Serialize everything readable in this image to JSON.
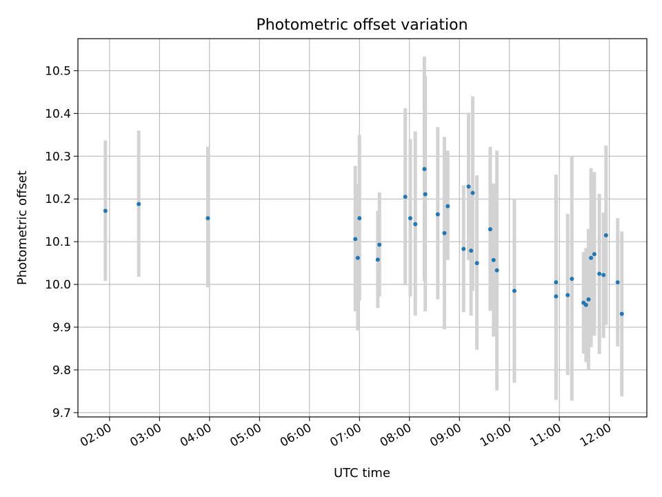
{
  "chart_data": {
    "type": "scatter",
    "title": "Photometric offset variation",
    "xlabel": "UTC time",
    "ylabel": "Photometric offset",
    "grid": true,
    "legend": "none",
    "x_tick_labels": [
      "02:00",
      "03:00",
      "04:00",
      "05:00",
      "06:00",
      "07:00",
      "08:00",
      "09:00",
      "10:00",
      "11:00",
      "12:00"
    ],
    "y_tick_labels": [
      "9.7",
      "9.8",
      "9.9",
      "10.0",
      "10.1",
      "10.2",
      "10.3",
      "10.4",
      "10.5"
    ],
    "xlim": [
      "01:22",
      "12:45"
    ],
    "ylim": [
      9.69,
      10.575
    ],
    "point_color": "#1f77b4",
    "errorbar_color": "#d3d3d3",
    "points": [
      {
        "t": "01:55",
        "y": 10.172,
        "lo": 10.008,
        "hi": 10.337
      },
      {
        "t": "02:35",
        "y": 10.188,
        "lo": 10.018,
        "hi": 10.36
      },
      {
        "t": "03:58",
        "y": 10.155,
        "lo": 9.993,
        "hi": 10.322
      },
      {
        "t": "06:55",
        "y": 10.106,
        "lo": 9.937,
        "hi": 10.277
      },
      {
        "t": "06:58",
        "y": 10.062,
        "lo": 9.892,
        "hi": 10.235
      },
      {
        "t": "07:00",
        "y": 10.155,
        "lo": 9.962,
        "hi": 10.35
      },
      {
        "t": "07:22",
        "y": 10.058,
        "lo": 9.945,
        "hi": 10.172
      },
      {
        "t": "07:24",
        "y": 10.093,
        "lo": 9.972,
        "hi": 10.215
      },
      {
        "t": "07:55",
        "y": 10.205,
        "lo": 9.998,
        "hi": 10.412
      },
      {
        "t": "08:01",
        "y": 10.155,
        "lo": 9.972,
        "hi": 10.34
      },
      {
        "t": "08:07",
        "y": 10.141,
        "lo": 9.927,
        "hi": 10.358
      },
      {
        "t": "08:18",
        "y": 10.27,
        "lo": 10.008,
        "hi": 10.533
      },
      {
        "t": "08:19",
        "y": 10.211,
        "lo": 9.937,
        "hi": 10.487
      },
      {
        "t": "08:34",
        "y": 10.164,
        "lo": 9.965,
        "hi": 10.368
      },
      {
        "t": "08:42",
        "y": 10.12,
        "lo": 9.895,
        "hi": 10.345
      },
      {
        "t": "08:46",
        "y": 10.183,
        "lo": 10.057,
        "hi": 10.313
      },
      {
        "t": "09:05",
        "y": 10.083,
        "lo": 9.935,
        "hi": 10.232
      },
      {
        "t": "09:11",
        "y": 10.229,
        "lo": 10.057,
        "hi": 10.402
      },
      {
        "t": "09:14",
        "y": 10.079,
        "lo": 9.927,
        "hi": 10.232
      },
      {
        "t": "09:16",
        "y": 10.214,
        "lo": 9.985,
        "hi": 10.44
      },
      {
        "t": "09:21",
        "y": 10.05,
        "lo": 9.847,
        "hi": 10.255
      },
      {
        "t": "09:37",
        "y": 10.129,
        "lo": 9.938,
        "hi": 10.322
      },
      {
        "t": "09:41",
        "y": 10.057,
        "lo": 9.878,
        "hi": 10.236
      },
      {
        "t": "09:45",
        "y": 10.033,
        "lo": 9.752,
        "hi": 10.313
      },
      {
        "t": "10:06",
        "y": 9.985,
        "lo": 9.77,
        "hi": 10.2
      },
      {
        "t": "10:56",
        "y": 10.005,
        "lo": 9.75,
        "hi": 10.257
      },
      {
        "t": "10:56",
        "y": 9.972,
        "lo": 9.73,
        "hi": 10.213
      },
      {
        "t": "11:10",
        "y": 9.975,
        "lo": 9.788,
        "hi": 10.165
      },
      {
        "t": "11:15",
        "y": 10.013,
        "lo": 9.728,
        "hi": 10.3
      },
      {
        "t": "11:29",
        "y": 9.957,
        "lo": 9.838,
        "hi": 10.076
      },
      {
        "t": "11:32",
        "y": 9.952,
        "lo": 9.818,
        "hi": 10.085
      },
      {
        "t": "11:35",
        "y": 9.965,
        "lo": 9.8,
        "hi": 10.13
      },
      {
        "t": "11:38",
        "y": 10.062,
        "lo": 9.853,
        "hi": 10.272
      },
      {
        "t": "11:42",
        "y": 10.071,
        "lo": 9.88,
        "hi": 10.263
      },
      {
        "t": "11:48",
        "y": 10.025,
        "lo": 9.837,
        "hi": 10.212
      },
      {
        "t": "11:53",
        "y": 10.022,
        "lo": 9.875,
        "hi": 10.168
      },
      {
        "t": "11:56",
        "y": 10.115,
        "lo": 9.905,
        "hi": 10.325
      },
      {
        "t": "12:10",
        "y": 10.005,
        "lo": 9.855,
        "hi": 10.155
      },
      {
        "t": "12:15",
        "y": 9.931,
        "lo": 9.738,
        "hi": 10.124
      }
    ]
  }
}
